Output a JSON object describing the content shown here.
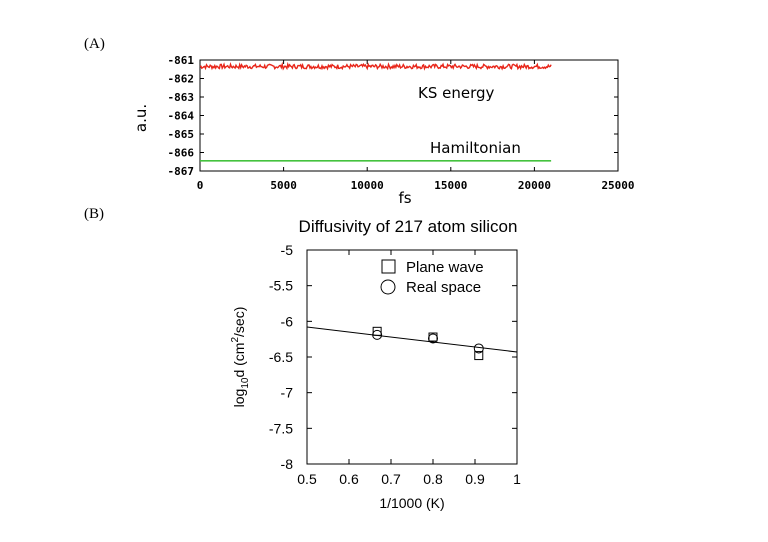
{
  "figure": {
    "panel_a_label": "(A)",
    "panel_b_label": "(B)"
  },
  "chart_data": [
    {
      "type": "line",
      "panel": "(A)",
      "title": "",
      "xlabel": "fs",
      "ylabel": "a.u.",
      "xlim": [
        0,
        25000
      ],
      "ylim": [
        -867,
        -861
      ],
      "x_ticks": [
        0,
        5000,
        10000,
        15000,
        20000,
        25000
      ],
      "x_tick_labels": [
        "0",
        "5000",
        "10000",
        "15000",
        "20000",
        "25000"
      ],
      "y_ticks": [
        -861,
        -862,
        -863,
        -864,
        -865,
        -866,
        -867
      ],
      "y_tick_labels": [
        "-861",
        "-862",
        "-863",
        "-864",
        "-865",
        "-866",
        "-867"
      ],
      "grid": false,
      "annotations": [
        "KS energy",
        "Hamiltonian"
      ],
      "series": [
        {
          "color": "#e8261a",
          "x_range": [
            0,
            21000
          ],
          "mean": -861.35,
          "fluctuation": 0.12
        },
        {
          "color": "#44c23e",
          "x": [
            0,
            21000
          ],
          "values": [
            -866.45,
            -866.45
          ]
        }
      ]
    },
    {
      "type": "scatter",
      "panel": "(B)",
      "title": "Diffusivity of 217 atom silicon",
      "xlabel": "1/1000 (K)",
      "ylabel_parts": [
        "log",
        "10",
        "d (cm",
        "2",
        "/sec)"
      ],
      "xlim": [
        0.5,
        1
      ],
      "ylim": [
        -8,
        -5
      ],
      "x_ticks": [
        0.5,
        0.6,
        0.7,
        0.8,
        0.9,
        1
      ],
      "x_tick_labels": [
        "0.5",
        "0.6",
        "0.7",
        "0.8",
        "0.9",
        "1"
      ],
      "y_ticks": [
        -5,
        -5.5,
        -6,
        -6.5,
        -7,
        -7.5,
        -8
      ],
      "y_tick_labels": [
        "-5",
        "-5.5",
        "-6",
        "-6.5",
        "-7",
        "-7.5",
        "-8"
      ],
      "grid": false,
      "legend_position": "top-right",
      "series": [
        {
          "name": "Plane wave",
          "marker": "square",
          "x": [
            0.667,
            0.8,
            0.909
          ],
          "values": [
            -6.14,
            -6.22,
            -6.48
          ]
        },
        {
          "name": "Real space",
          "marker": "circle",
          "x": [
            0.667,
            0.8,
            0.909
          ],
          "values": [
            -6.19,
            -6.24,
            -6.38
          ]
        }
      ],
      "fit_line": {
        "x": [
          0.5,
          1
        ],
        "values": [
          -6.08,
          -6.43
        ]
      }
    }
  ]
}
